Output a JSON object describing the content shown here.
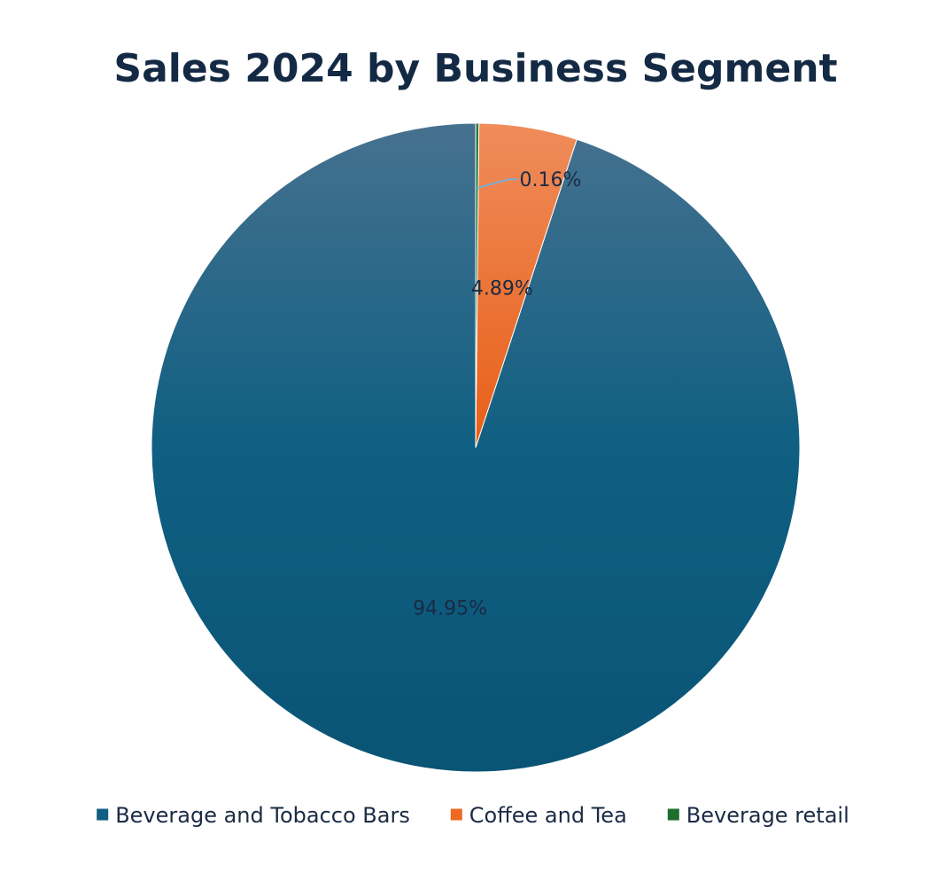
{
  "chart_data": {
    "type": "pie",
    "title": "Sales 2024 by Business Segment",
    "categories": [
      "Beverage and Tobacco Bars",
      "Coffee and Tea",
      "Beverage retail"
    ],
    "values": [
      94.95,
      4.89,
      0.16
    ],
    "labels": [
      "94.95%",
      "4.89%",
      "0.16%"
    ],
    "colors": [
      "#0f5f82",
      "#ec6a24",
      "#1e6e2e"
    ],
    "legend_position": "bottom",
    "start_angle": "12 o'clock",
    "direction": "counter-clockwise"
  }
}
